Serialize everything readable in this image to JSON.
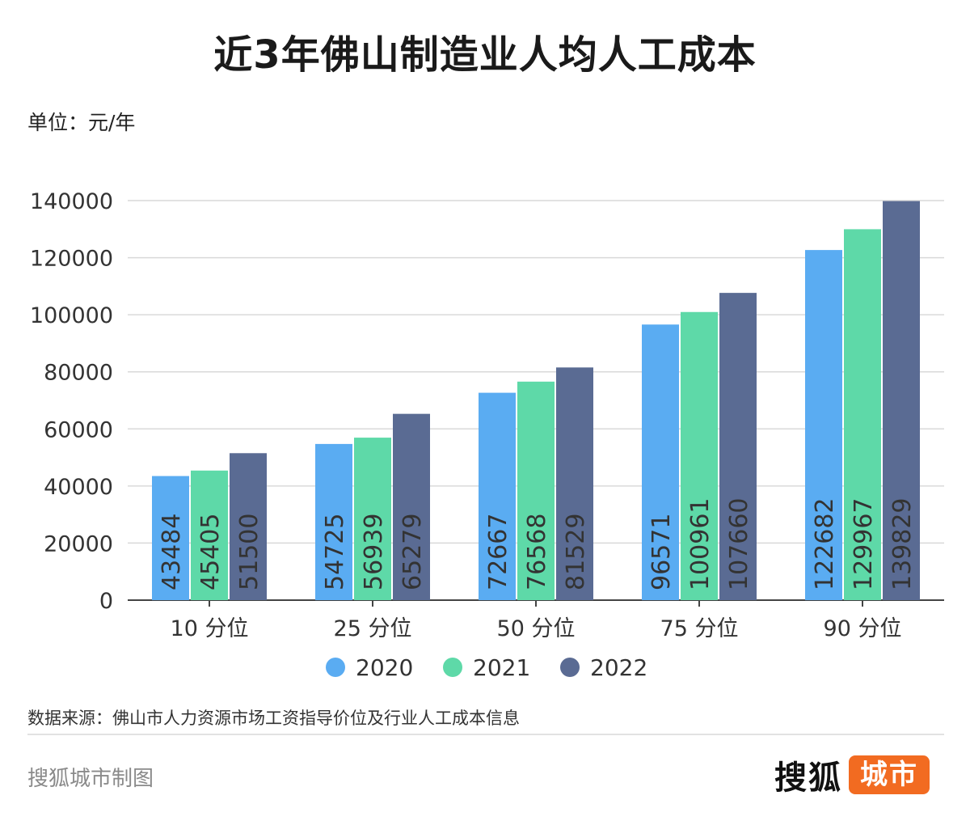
{
  "title": "近3年佛山制造业人均人工成本",
  "unit": "单位：元/年",
  "source": "数据来源：佛山市人力资源市场工资指导价位及行业人工成本信息",
  "credit": "搜狐城市制图",
  "logo": {
    "main": "搜狐",
    "box": "城市"
  },
  "chart_data": {
    "type": "bar",
    "categories": [
      "10 分位",
      "25 分位",
      "50 分位",
      "75 分位",
      "90 分位"
    ],
    "series": [
      {
        "name": "2020",
        "color": "#5aacf2",
        "values": [
          43484,
          54725,
          72667,
          96571,
          122682
        ]
      },
      {
        "name": "2021",
        "color": "#5ed9a8",
        "values": [
          45405,
          56939,
          76568,
          100961,
          129967
        ]
      },
      {
        "name": "2022",
        "color": "#5a6b93",
        "values": [
          51500,
          65279,
          81529,
          107660,
          139829
        ]
      }
    ],
    "ylim": [
      0,
      140000
    ],
    "yticks": [
      "0",
      "20000",
      "40000",
      "60000",
      "80000",
      "100000",
      "120000",
      "140000"
    ],
    "grid": true,
    "legend": "bottom"
  }
}
